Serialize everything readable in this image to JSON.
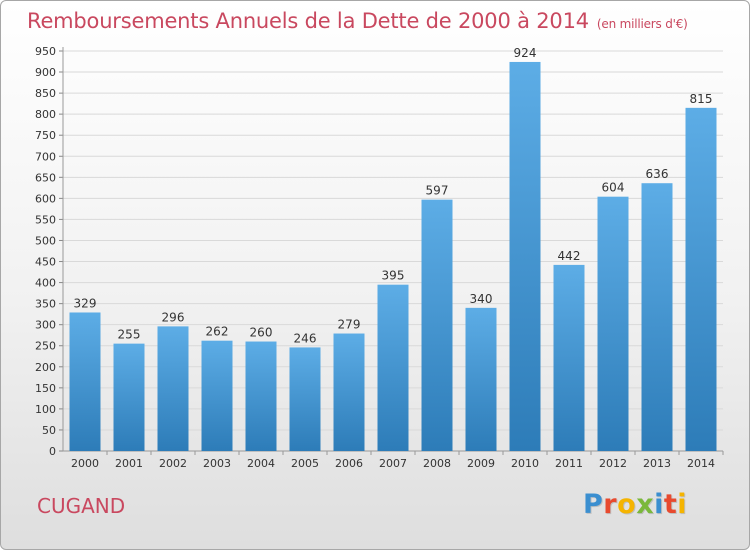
{
  "title": "Remboursements Annuels de la Dette de 2000 à 2014",
  "unit_note": "(en milliers d'€)",
  "location": "CUGAND",
  "brand": "Proxiti",
  "colors": {
    "title": "#c9485f",
    "bar_top": "#5dade6",
    "bar_bottom": "#2d7cb8",
    "gridline": "#d9d9d9",
    "brand_letters": [
      "#3b8fd0",
      "#e84a2f",
      "#f5b400",
      "#7ab83b",
      "#3b8fd0",
      "#e84a2f",
      "#f5b400"
    ]
  },
  "chart_data": {
    "type": "bar",
    "title": "Remboursements Annuels de la Dette de 2000 à 2014",
    "unit": "(en milliers d'€)",
    "categories": [
      "2000",
      "2001",
      "2002",
      "2003",
      "2004",
      "2005",
      "2006",
      "2007",
      "2008",
      "2009",
      "2010",
      "2011",
      "2012",
      "2013",
      "2014"
    ],
    "values": [
      329,
      255,
      296,
      262,
      260,
      246,
      279,
      395,
      597,
      340,
      924,
      442,
      604,
      636,
      815
    ],
    "ylim": [
      0,
      950
    ],
    "yticks": [
      0,
      50,
      100,
      150,
      200,
      250,
      300,
      350,
      400,
      450,
      500,
      550,
      600,
      650,
      700,
      750,
      800,
      850,
      900,
      950
    ],
    "grid": true,
    "data_labels": true
  }
}
